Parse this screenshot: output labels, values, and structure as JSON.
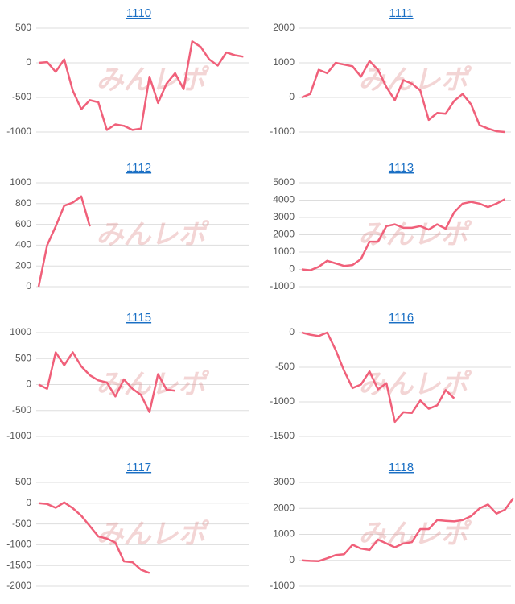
{
  "watermark": "みんレポ",
  "chart_data": [
    {
      "type": "line",
      "title": "1110",
      "color": "#f0607a",
      "grid": true,
      "ylim": [
        500,
        -1000
      ],
      "yticks": [
        500,
        0,
        -500,
        -1000
      ],
      "values": [
        0,
        10,
        -130,
        50,
        -400,
        -670,
        -540,
        -570,
        -970,
        -890,
        -910,
        -970,
        -950,
        -200,
        -580,
        -300,
        -150,
        -380,
        310,
        230,
        50,
        -40,
        150,
        110,
        90
      ]
    },
    {
      "type": "line",
      "title": "1111",
      "color": "#f0607a",
      "grid": true,
      "ylim": [
        2000,
        -1000
      ],
      "yticks": [
        2000,
        1000,
        0,
        -1000
      ],
      "values": [
        0,
        100,
        800,
        700,
        1000,
        950,
        900,
        600,
        1050,
        800,
        300,
        -80,
        500,
        400,
        200,
        -650,
        -450,
        -470,
        -100,
        100,
        -200,
        -800,
        -900,
        -980,
        -1000
      ]
    },
    {
      "type": "line",
      "title": "1112",
      "color": "#f0607a",
      "grid": true,
      "ylim": [
        1000,
        0
      ],
      "yticks": [
        1000,
        800,
        600,
        400,
        200,
        0
      ],
      "values": [
        0,
        400,
        580,
        780,
        810,
        870,
        580
      ]
    },
    {
      "type": "line",
      "title": "1113",
      "color": "#f0607a",
      "grid": true,
      "ylim": [
        5000,
        -1000
      ],
      "yticks": [
        5000,
        4000,
        3000,
        2000,
        1000,
        0,
        -1000
      ],
      "values": [
        0,
        -50,
        150,
        500,
        350,
        200,
        250,
        600,
        1600,
        1600,
        2500,
        2600,
        2400,
        2400,
        2500,
        2300,
        2600,
        2350,
        3300,
        3800,
        3900,
        3800,
        3600,
        3800,
        4050
      ]
    },
    {
      "type": "line",
      "title": "1115",
      "color": "#f0607a",
      "grid": true,
      "ylim": [
        1000,
        -1000
      ],
      "yticks": [
        1000,
        500,
        0,
        -500,
        -1000
      ],
      "values": [
        0,
        -80,
        620,
        370,
        620,
        350,
        180,
        80,
        40,
        -230,
        100,
        -80,
        -200,
        -530,
        200,
        -100,
        -120
      ]
    },
    {
      "type": "line",
      "title": "1116",
      "color": "#f0607a",
      "grid": true,
      "ylim": [
        0,
        -1500
      ],
      "yticks": [
        0,
        -500,
        -1000,
        -1500
      ],
      "values": [
        0,
        -30,
        -50,
        0,
        -250,
        -550,
        -800,
        -750,
        -560,
        -820,
        -730,
        -1290,
        -1150,
        -1160,
        -980,
        -1100,
        -1050,
        -830,
        -950
      ]
    },
    {
      "type": "line",
      "title": "1117",
      "color": "#f0607a",
      "grid": true,
      "ylim": [
        500,
        -2000
      ],
      "yticks": [
        500,
        0,
        -500,
        -1000,
        -1500,
        -2000
      ],
      "values": [
        0,
        -20,
        -110,
        20,
        -120,
        -300,
        -550,
        -800,
        -850,
        -950,
        -1400,
        -1420,
        -1600,
        -1680
      ]
    },
    {
      "type": "line",
      "title": "1118",
      "color": "#f0607a",
      "grid": true,
      "ylim": [
        3000,
        -1000
      ],
      "yticks": [
        3000,
        2000,
        1000,
        0,
        -1000
      ],
      "values": [
        0,
        -20,
        -30,
        80,
        200,
        230,
        600,
        450,
        400,
        800,
        650,
        500,
        650,
        700,
        1200,
        1200,
        1550,
        1520,
        1500,
        1550,
        1700,
        2000,
        2150,
        1800,
        1950,
        2400
      ]
    }
  ]
}
